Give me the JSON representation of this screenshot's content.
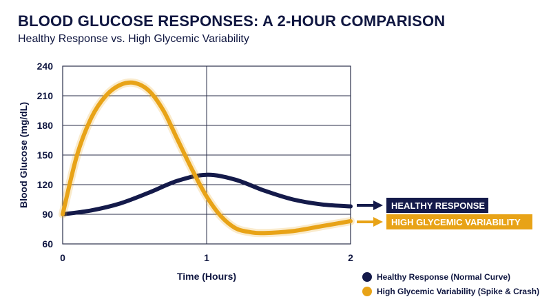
{
  "colors": {
    "navy": "#141a4a",
    "orange": "#e8a317",
    "grid": "#2a2e4a",
    "text": "#0f1640"
  },
  "chart_data": {
    "type": "line",
    "title": "BLOOD GLUCOSE RESPONSES: A 2-HOUR COMPARISON",
    "subtitle": "Healthy Response vs. High Glycemic Variability",
    "xlabel": "Time (Hours)",
    "ylabel": "Blood Glucose (mg/dL)",
    "xlim": [
      0,
      2
    ],
    "ylim": [
      60,
      240
    ],
    "x_ticks": [
      0,
      1,
      2
    ],
    "y_ticks": [
      60,
      90,
      120,
      150,
      180,
      210,
      240
    ],
    "grid": true,
    "legend_position": "bottom-right",
    "series": [
      {
        "name": "Healthy Response (Normal Curve)",
        "tag": "HEALTHY RESPONSE",
        "color": "#141a4a",
        "x": [
          0,
          0.2,
          0.4,
          0.6,
          0.8,
          1.0,
          1.2,
          1.4,
          1.6,
          1.8,
          2.0
        ],
        "y": [
          90,
          94,
          101,
          112,
          124,
          130,
          125,
          114,
          105,
          100,
          98
        ]
      },
      {
        "name": "High Glycemic Variability (Spike & Crash)",
        "tag": "HIGH GLYCEMIC VARIABILITY",
        "color": "#e8a317",
        "x": [
          0,
          0.1,
          0.2,
          0.3,
          0.4,
          0.5,
          0.6,
          0.7,
          0.8,
          0.9,
          1.0,
          1.1,
          1.2,
          1.3,
          1.4,
          1.6,
          1.8,
          2.0
        ],
        "y": [
          90,
          150,
          188,
          210,
          221,
          223,
          215,
          195,
          165,
          135,
          108,
          88,
          76,
          72,
          71,
          73,
          78,
          83
        ]
      }
    ]
  }
}
